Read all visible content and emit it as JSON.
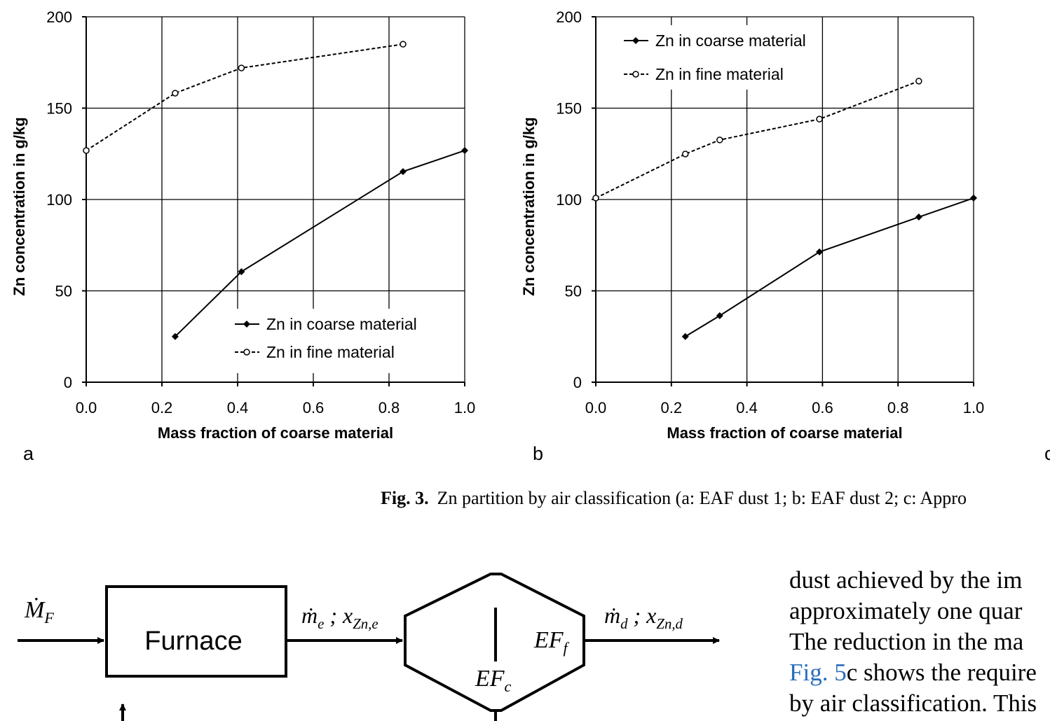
{
  "chart_data": [
    {
      "type": "line",
      "xlabel": "Mass fraction of coarse material",
      "ylabel": "Zn concentration in g/kg",
      "xlim": [
        0,
        1
      ],
      "ylim": [
        0,
        200
      ],
      "xticks": [
        {
          "value": 0,
          "label": "0.0"
        },
        {
          "value": 0.2,
          "label": "0.2"
        },
        {
          "value": 0.4,
          "label": "0.4"
        },
        {
          "value": 0.6,
          "label": "0.6"
        },
        {
          "value": 0.8,
          "label": "0.8"
        },
        {
          "value": 1,
          "label": "1.0"
        }
      ],
      "yticks": [
        0,
        50,
        100,
        150,
        200
      ],
      "grid": true,
      "legend": "lower center",
      "series": [
        {
          "name": "Zn in coarse material",
          "color": "#000000",
          "linestyle": "solid",
          "marker": "diamond",
          "x": [
            0.235,
            0.41,
            0.837,
            1.0
          ],
          "values": [
            25,
            60.5,
            115.3,
            126.8
          ]
        },
        {
          "name": "Zn in fine material",
          "color": "#000000",
          "linestyle": "dashed",
          "marker": "circle",
          "x": [
            0,
            0.235,
            0.41,
            0.837
          ],
          "values": [
            126.8,
            158.2,
            172,
            185
          ]
        }
      ]
    },
    {
      "type": "line",
      "xlabel": "Mass fraction of coarse material",
      "ylabel": "Zn concentration in g/kg",
      "xlim": [
        0,
        1
      ],
      "ylim": [
        0,
        200
      ],
      "xticks": [
        {
          "value": 0,
          "label": "0.0"
        },
        {
          "value": 0.2,
          "label": "0.2"
        },
        {
          "value": 0.4,
          "label": "0.4"
        },
        {
          "value": 0.6,
          "label": "0.6"
        },
        {
          "value": 0.8,
          "label": "0.8"
        },
        {
          "value": 1,
          "label": "1.0"
        }
      ],
      "yticks": [
        0,
        50,
        100,
        150,
        200
      ],
      "grid": true,
      "legend": "upper left",
      "series": [
        {
          "name": "Zn in coarse material",
          "color": "#000000",
          "linestyle": "solid",
          "marker": "diamond",
          "x": [
            0.237,
            0.328,
            0.592,
            0.855,
            1.0
          ],
          "values": [
            25,
            36.4,
            71.3,
            90.4,
            100.8
          ]
        },
        {
          "name": "Zn in fine material",
          "color": "#000000",
          "linestyle": "dashed",
          "marker": "circle",
          "x": [
            0,
            0.237,
            0.328,
            0.592,
            0.855
          ],
          "values": [
            100.8,
            124.9,
            132.6,
            144,
            164.8
          ]
        }
      ]
    }
  ],
  "panel_labels": [
    "a",
    "b",
    "c"
  ],
  "caption": {
    "label": "Fig. 3.",
    "text": "Zn partition by air classification (a: EAF dust 1; b: EAF dust 2; c: Appro"
  },
  "diagram": {
    "feed": {
      "main": "Ṁ",
      "sub": "F"
    },
    "furnace": "Furnace",
    "stream_e": {
      "m": "ṁ",
      "m_sub": "e",
      "sep": " ; ",
      "x": "x",
      "x_sub": "Zn,e"
    },
    "ef_f": {
      "main": "EF",
      "sub": "f"
    },
    "ef_c": {
      "main": "EF",
      "sub": "c"
    },
    "stream_d": {
      "m": "ṁ",
      "m_sub": "d",
      "sep": " ; ",
      "x": "x",
      "x_sub": "Zn,d"
    }
  },
  "body_text": {
    "lines": [
      "dust achieved by the im",
      "approximately one quar",
      "The reduction in the ma",
      {
        "link": "Fig. 5",
        "text": "c shows the require"
      },
      "by air classification. This"
    ]
  }
}
